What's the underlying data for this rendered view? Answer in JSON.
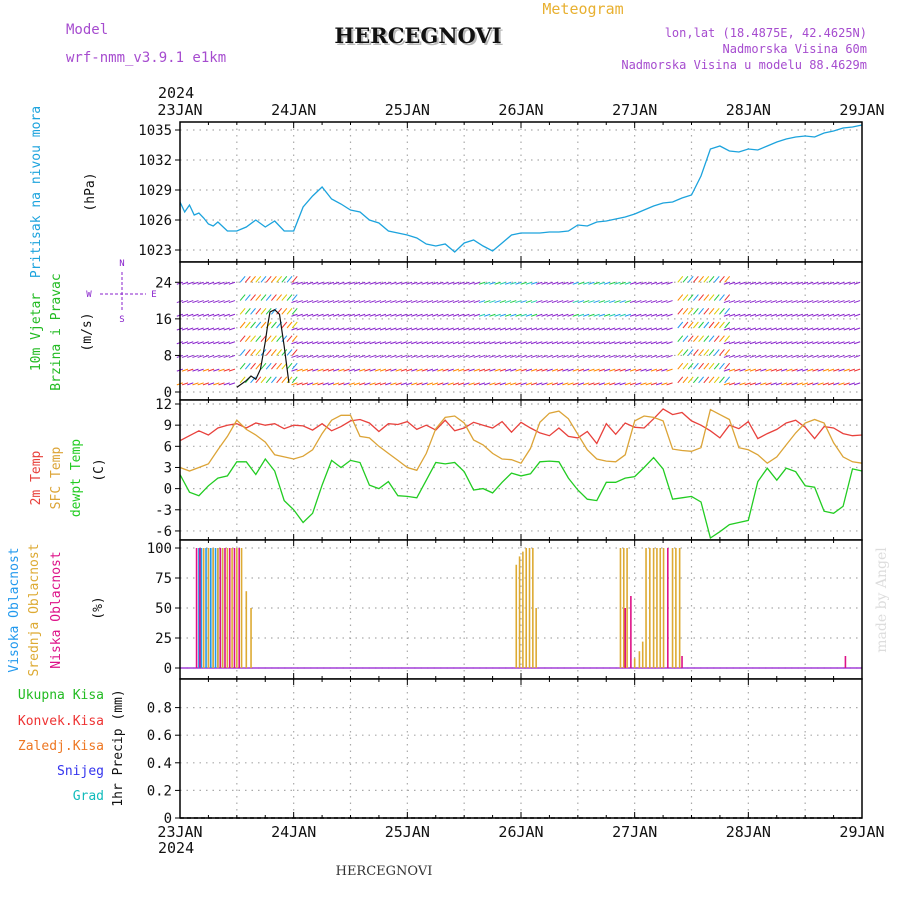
{
  "header": {
    "model_label": "Model",
    "model_name": "wrf-nmm_v3.9.1 e1km",
    "station": "HERCEGNOVI",
    "meteogram": "Meteogram",
    "lonlat": "lon,lat (18.4875E, 42.4625N)",
    "elevation": "Nadmorska Visina 60m",
    "model_elevation": "Nadmorska Visina u modelu 88.4629m",
    "year_top": "2024",
    "year_bottom": "2024",
    "footer_station": "HERCEGNOVI",
    "watermark": "made by Angel"
  },
  "colors": {
    "pressure": "#1ca3dd",
    "temp2m": "#e8413c",
    "sfc_temp": "#dca437",
    "dewpt": "#22cc22",
    "high_cloud": "#2299ee",
    "mid_cloud": "#ddaa33",
    "low_cloud": "#dd1188",
    "wind_purple": "#8822cc",
    "title_purple": "#a64ccf",
    "meteogram_orange": "#e8b030",
    "total_precip": "#22bb22",
    "conv_precip": "#ee3333",
    "frozen_precip": "#ee7722",
    "snow": "#3333ee",
    "hail": "#11bbbb"
  },
  "chart_data": [
    {
      "type": "line",
      "panel": "pressure",
      "xlabel": "",
      "ylabel_lines": [
        "Pritisak na nivou mora",
        "(hPa)"
      ],
      "xlim": [
        0,
        144
      ],
      "ylim": [
        1022,
        1035.5
      ],
      "yticks": [
        1023,
        1026,
        1029,
        1032,
        1035
      ],
      "x_ticks": [
        "23JAN",
        "24JAN",
        "25JAN",
        "26JAN",
        "27JAN",
        "28JAN",
        "29JAN"
      ],
      "grid": true,
      "series": [
        {
          "x": [
            0,
            1,
            2,
            3,
            4,
            5,
            6,
            7,
            8,
            10,
            12,
            14,
            16,
            18,
            20,
            22,
            24,
            26,
            28,
            30,
            32,
            34,
            36,
            38,
            40,
            42,
            44,
            46,
            48,
            50,
            52,
            54,
            56,
            58,
            60,
            62,
            64,
            66,
            68,
            70,
            72,
            74,
            76,
            78,
            80,
            82,
            84,
            86,
            88,
            90,
            92,
            94,
            96,
            98,
            100,
            102,
            104,
            106,
            108,
            110,
            112,
            114,
            116,
            118,
            120,
            122,
            124,
            126,
            128,
            130,
            132,
            134,
            136,
            138,
            140,
            142,
            144
          ],
          "values": [
            1027.8,
            1026.8,
            1027.5,
            1026.5,
            1026.7,
            1026.2,
            1025.6,
            1025.4,
            1025.8,
            1024.9,
            1024.9,
            1025.3,
            1026.0,
            1025.3,
            1025.9,
            1024.9,
            1024.9,
            1027.3,
            1028.4,
            1029.3,
            1028.1,
            1027.6,
            1027.0,
            1026.8,
            1026.0,
            1025.7,
            1024.9,
            1024.7,
            1024.5,
            1024.2,
            1023.6,
            1023.4,
            1023.6,
            1022.8,
            1023.7,
            1024.0,
            1023.4,
            1022.9,
            1023.7,
            1024.5,
            1024.7,
            1024.7,
            1024.7,
            1024.8,
            1024.8,
            1024.9,
            1025.5,
            1025.4,
            1025.8,
            1025.9,
            1026.1,
            1026.3,
            1026.6,
            1027.0,
            1027.4,
            1027.7,
            1027.8,
            1028.2,
            1028.5,
            1030.4,
            1033.1,
            1033.4,
            1032.9,
            1032.8,
            1033.1,
            1033.0,
            1033.4,
            1033.8,
            1034.1,
            1034.3,
            1034.4,
            1034.3,
            1034.7,
            1034.9,
            1035.2,
            1035.3,
            1035.5
          ]
        }
      ]
    },
    {
      "type": "line",
      "panel": "wind",
      "xlabel": "",
      "ylabel_lines": [
        "10m Vjetar",
        "Brzina i Pravac",
        "(m/s)"
      ],
      "compass": {
        "n": "N",
        "w": "W",
        "e": "E",
        "s": "S"
      },
      "xlim": [
        0,
        144
      ],
      "ylim": [
        0,
        28
      ],
      "yticks": [
        0,
        8,
        16,
        24
      ],
      "grid": true,
      "series": [
        {
          "x": [
            12,
            14,
            15,
            16,
            17,
            18,
            18.5,
            19,
            20,
            21,
            22,
            23
          ],
          "values": [
            1.0,
            2.5,
            3.5,
            2.8,
            5.0,
            11.0,
            14.5,
            17.5,
            18.0,
            17.0,
            10.0,
            2.0
          ]
        }
      ]
    },
    {
      "type": "line",
      "panel": "temperature",
      "xlabel": "",
      "ylabel_lines": [
        "2m Temp",
        "SFC Temp",
        "dewpt Temp",
        "(C)"
      ],
      "xlim": [
        0,
        144
      ],
      "ylim": [
        -7,
        12
      ],
      "yticks": [
        12,
        9,
        6,
        3,
        0,
        -3,
        -6
      ],
      "grid": true,
      "series": [
        {
          "name": "2m Temp",
          "x": [
            0,
            2,
            4,
            6,
            8,
            10,
            12,
            14,
            16,
            18,
            20,
            22,
            24,
            26,
            28,
            30,
            32,
            34,
            36,
            38,
            40,
            42,
            44,
            46,
            48,
            50,
            52,
            54,
            56,
            58,
            60,
            62,
            64,
            66,
            68,
            70,
            72,
            74,
            76,
            78,
            80,
            82,
            84,
            86,
            88,
            90,
            92,
            94,
            96,
            98,
            100,
            102,
            104,
            106,
            108,
            110,
            112,
            114,
            116,
            118,
            120,
            122,
            124,
            126,
            128,
            130,
            132,
            134,
            136,
            138,
            140,
            142,
            144
          ],
          "values": [
            6.8,
            7.5,
            8.2,
            7.6,
            8.6,
            9.0,
            9.2,
            8.6,
            9.3,
            9.0,
            9.2,
            8.5,
            9.0,
            8.9,
            8.3,
            9.2,
            8.2,
            8.8,
            9.6,
            9.8,
            9.3,
            8.1,
            9.2,
            9.1,
            9.5,
            8.4,
            9.0,
            8.3,
            9.7,
            8.2,
            8.6,
            9.4,
            9.0,
            8.6,
            9.5,
            8.0,
            9.4,
            8.6,
            7.9,
            7.5,
            8.6,
            7.4,
            7.2,
            8.1,
            6.4,
            9.2,
            7.7,
            9.3,
            8.7,
            8.6,
            9.9,
            11.3,
            10.5,
            10.8,
            9.6,
            9.0,
            8.2,
            7.2,
            9.0,
            8.5,
            9.5,
            7.1,
            7.8,
            8.4,
            9.3,
            9.7,
            8.7,
            7.1,
            8.8,
            8.6,
            7.8,
            7.5,
            7.6
          ]
        },
        {
          "name": "SFC Temp",
          "x": [
            0,
            2,
            4,
            6,
            8,
            10,
            12,
            14,
            16,
            18,
            20,
            22,
            24,
            26,
            28,
            30,
            32,
            34,
            36,
            38,
            40,
            42,
            44,
            46,
            48,
            50,
            52,
            54,
            56,
            58,
            60,
            62,
            64,
            66,
            68,
            70,
            72,
            74,
            76,
            78,
            80,
            82,
            84,
            86,
            88,
            90,
            92,
            94,
            96,
            98,
            100,
            102,
            104,
            106,
            108,
            110,
            112,
            114,
            116,
            118,
            120,
            122,
            124,
            126,
            128,
            130,
            132,
            134,
            136,
            138,
            140,
            142,
            144
          ],
          "values": [
            3.0,
            2.5,
            3.0,
            3.5,
            5.5,
            7.4,
            9.7,
            8.4,
            7.6,
            6.6,
            4.8,
            4.5,
            4.2,
            4.6,
            5.5,
            7.8,
            9.7,
            10.4,
            10.4,
            7.4,
            7.2,
            6.0,
            5.0,
            4.0,
            3.0,
            2.6,
            5.0,
            8.5,
            10.1,
            10.3,
            9.3,
            6.9,
            6.2,
            5.0,
            4.2,
            4.1,
            3.6,
            5.7,
            9.4,
            10.7,
            11.0,
            9.9,
            7.7,
            5.5,
            4.2,
            3.9,
            3.8,
            4.8,
            9.6,
            10.3,
            10.1,
            9.6,
            5.6,
            5.4,
            5.3,
            5.8,
            11.2,
            10.5,
            9.8,
            5.8,
            5.5,
            4.8,
            3.6,
            4.5,
            6.2,
            7.9,
            9.3,
            9.8,
            9.3,
            6.5,
            4.5,
            3.8,
            3.6
          ]
        },
        {
          "name": "dewpt Temp",
          "x": [
            0,
            2,
            4,
            6,
            8,
            10,
            12,
            14,
            16,
            18,
            20,
            22,
            24,
            26,
            28,
            30,
            32,
            34,
            36,
            38,
            40,
            42,
            44,
            46,
            48,
            50,
            52,
            54,
            56,
            58,
            60,
            62,
            64,
            66,
            68,
            70,
            72,
            74,
            76,
            78,
            80,
            82,
            84,
            86,
            88,
            90,
            92,
            94,
            96,
            98,
            100,
            102,
            104,
            106,
            108,
            110,
            112,
            114,
            116,
            118,
            120,
            122,
            124,
            126,
            128,
            130,
            132,
            134,
            136,
            138,
            140,
            142,
            144
          ],
          "values": [
            2.0,
            -0.5,
            -1.0,
            0.4,
            1.5,
            1.8,
            3.8,
            3.8,
            2.0,
            4.2,
            2.5,
            -1.7,
            -3.0,
            -4.8,
            -3.5,
            0.5,
            4.0,
            3.0,
            4.0,
            3.7,
            0.5,
            0.0,
            1.0,
            -1.0,
            -1.1,
            -1.3,
            1.2,
            3.7,
            3.5,
            3.7,
            2.4,
            -0.2,
            0.0,
            -0.6,
            0.9,
            2.2,
            1.8,
            2.1,
            3.8,
            3.9,
            3.8,
            1.5,
            -0.2,
            -1.5,
            -1.7,
            0.9,
            0.9,
            1.5,
            1.7,
            3.0,
            4.4,
            2.8,
            -1.5,
            -1.3,
            -1.1,
            -1.9,
            -7.0,
            -6.1,
            -5.1,
            -4.8,
            -4.5,
            1.0,
            2.9,
            1.2,
            2.9,
            2.4,
            0.4,
            0.2,
            -3.2,
            -3.5,
            -2.5,
            2.8,
            2.5
          ]
        }
      ]
    },
    {
      "type": "bar",
      "panel": "clouds",
      "xlabel": "",
      "ylabel_lines": [
        "Visoka Oblacnost",
        "Srednja Oblacnost",
        "Niska Oblacnost",
        "(%)"
      ],
      "xlim": [
        0,
        144
      ],
      "ylim": [
        0,
        100
      ],
      "yticks": [
        0,
        25,
        50,
        75,
        100
      ],
      "grid": true,
      "series": [
        {
          "name": "Visoka Oblacnost",
          "x": [
            4,
            4.5,
            5,
            5.5,
            6,
            6.5,
            7,
            7.5,
            8,
            9
          ],
          "values": [
            100,
            100,
            100,
            100,
            100,
            100,
            100,
            100,
            100,
            100
          ]
        },
        {
          "name": "Srednja Oblacnost",
          "x": [
            5,
            6,
            7,
            8,
            9,
            10,
            11,
            12,
            13,
            14,
            15,
            71,
            71.7,
            72.4,
            73.1,
            73.8,
            74.5,
            75.2,
            93,
            93.7,
            94.4,
            96,
            97,
            97.7,
            98.4,
            99.2,
            100,
            100.7,
            101.4,
            102.1,
            104,
            104.7,
            105.5
          ],
          "values": [
            100,
            100,
            100,
            100,
            100,
            100,
            100,
            100,
            100,
            64,
            50,
            86,
            93,
            97,
            100,
            100,
            100,
            50,
            100,
            100,
            100,
            8,
            14,
            22,
            100,
            100,
            100,
            100,
            100,
            100,
            100,
            100,
            100
          ]
        },
        {
          "name": "Niska Oblacnost",
          "x": [
            3.5,
            4.2,
            8.5,
            9.5,
            10.5,
            11.5,
            12.5,
            94,
            95.2,
            103,
            106,
            140.5
          ],
          "values": [
            100,
            100,
            100,
            100,
            100,
            100,
            100,
            50,
            60,
            100,
            10,
            10
          ]
        }
      ]
    },
    {
      "type": "bar",
      "panel": "precip",
      "xlabel": "",
      "ylabel": "1hr Precip (mm)",
      "legend": [
        "Ukupna Kisa",
        "Konvek.Kisa",
        "Zaledj.Kisa",
        "Snijeg",
        "Grad"
      ],
      "xlim": [
        0,
        144
      ],
      "ylim": [
        0,
        1
      ],
      "yticks": [
        0,
        0.2,
        0.4,
        0.6,
        0.8
      ],
      "grid": true,
      "series": [
        {
          "name": "Ukupna Kisa",
          "values": []
        }
      ]
    }
  ]
}
